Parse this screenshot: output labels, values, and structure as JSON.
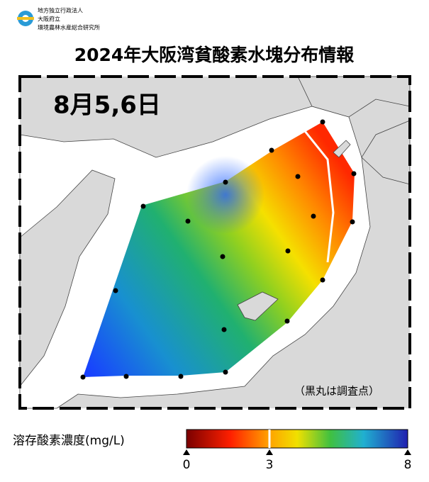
{
  "header": {
    "org_lines": [
      "地方独立行政法人",
      "大阪府立",
      "環境農林水産総合研究所"
    ],
    "title": "2024年大阪湾貧酸素水塊分布情報"
  },
  "map": {
    "date": "8月5,6日",
    "note": "（黒丸は調査点）"
  },
  "colorbar": {
    "label": "溶存酸素濃度(mg/L)",
    "min": 0,
    "max": 8,
    "ticks": [
      0,
      3,
      8
    ]
  }
}
